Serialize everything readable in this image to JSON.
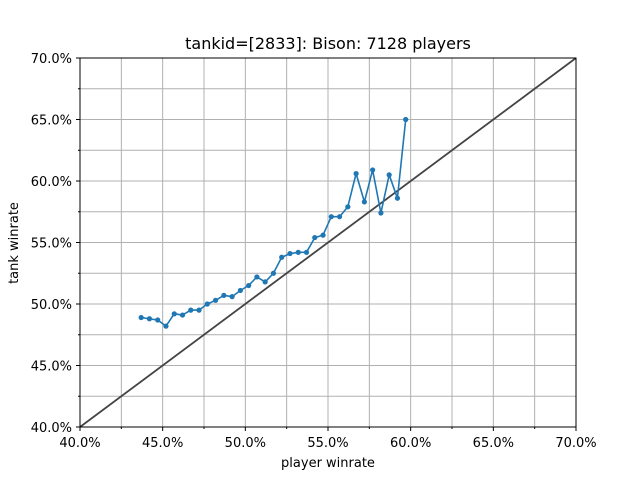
{
  "chart_data": {
    "type": "line",
    "title": "tankid=[2833]: Bison: 7128 players",
    "xlabel": "player winrate",
    "ylabel": "tank winrate",
    "xlim": [
      0.4,
      0.7
    ],
    "ylim": [
      0.4,
      0.7
    ],
    "grid": true,
    "x_major_ticks": [
      0.4,
      0.45,
      0.5,
      0.55,
      0.6,
      0.65,
      0.7
    ],
    "x_minor_ticks": [
      0.425,
      0.475,
      0.525,
      0.575,
      0.625,
      0.675
    ],
    "y_major_ticks": [
      0.4,
      0.45,
      0.5,
      0.55,
      0.6,
      0.65,
      0.7
    ],
    "y_minor_ticks": [
      0.425,
      0.475,
      0.525,
      0.575,
      0.625,
      0.675
    ],
    "x_tick_labels": [
      "40.0%",
      "45.0%",
      "50.0%",
      "55.0%",
      "60.0%",
      "65.0%",
      "70.0%"
    ],
    "y_tick_labels": [
      "40.0%",
      "45.0%",
      "50.0%",
      "55.0%",
      "60.0%",
      "65.0%",
      "70.0%"
    ],
    "series": [
      {
        "color": "#1f77b4",
        "marker": "circle",
        "points": [
          [
            0.437,
            0.489
          ],
          [
            0.442,
            0.488
          ],
          [
            0.447,
            0.487
          ],
          [
            0.452,
            0.482
          ],
          [
            0.457,
            0.492
          ],
          [
            0.462,
            0.491
          ],
          [
            0.467,
            0.495
          ],
          [
            0.472,
            0.495
          ],
          [
            0.477,
            0.5
          ],
          [
            0.482,
            0.503
          ],
          [
            0.487,
            0.507
          ],
          [
            0.492,
            0.506
          ],
          [
            0.497,
            0.511
          ],
          [
            0.502,
            0.515
          ],
          [
            0.507,
            0.522
          ],
          [
            0.512,
            0.518
          ],
          [
            0.517,
            0.525
          ],
          [
            0.522,
            0.538
          ],
          [
            0.527,
            0.541
          ],
          [
            0.532,
            0.542
          ],
          [
            0.537,
            0.542
          ],
          [
            0.542,
            0.554
          ],
          [
            0.547,
            0.556
          ],
          [
            0.552,
            0.571
          ],
          [
            0.557,
            0.571
          ],
          [
            0.562,
            0.579
          ],
          [
            0.567,
            0.606
          ],
          [
            0.572,
            0.583
          ],
          [
            0.577,
            0.609
          ],
          [
            0.582,
            0.574
          ],
          [
            0.587,
            0.605
          ],
          [
            0.592,
            0.586
          ],
          [
            0.597,
            0.65
          ]
        ]
      },
      {
        "color": "#444444",
        "marker": "none",
        "points": [
          [
            0.4,
            0.4
          ],
          [
            0.7,
            0.7
          ]
        ]
      }
    ]
  }
}
